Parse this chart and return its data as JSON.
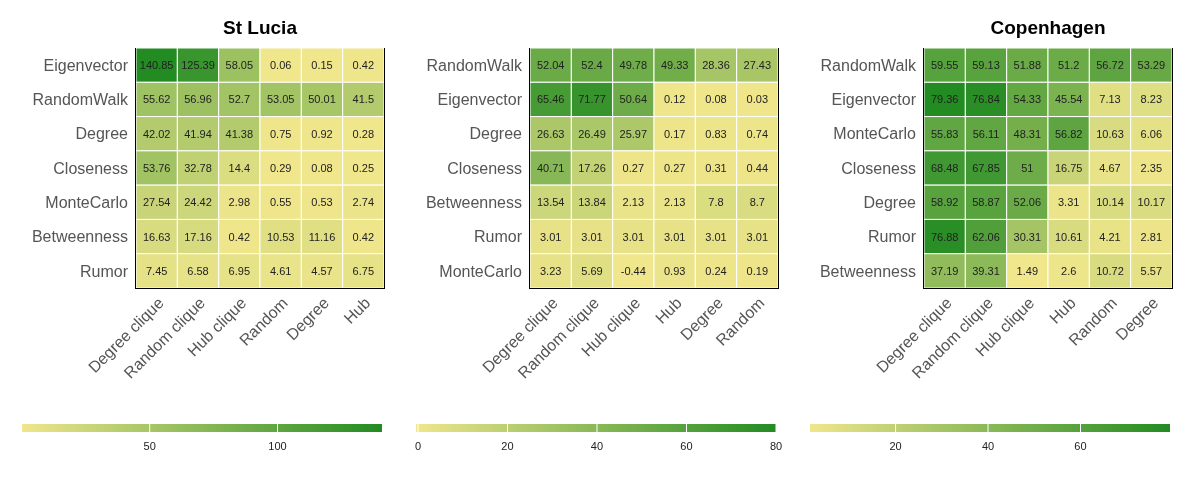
{
  "chart_data": [
    {
      "type": "heatmap",
      "title": "St Lucia",
      "categories": [
        "Degree clique",
        "Random clique",
        "Hub clique",
        "Random",
        "Degree",
        "Hub"
      ],
      "y_categories": [
        "Eigenvector",
        "RandomWalk",
        "Degree",
        "Closeness",
        "MonteCarlo",
        "Betweenness",
        "Rumor"
      ],
      "cells": [
        [
          140.85,
          125.39,
          58.05,
          0.06,
          0.15,
          0.42
        ],
        [
          55.62,
          56.96,
          52.7,
          53.05,
          50.01,
          41.5
        ],
        [
          42.02,
          41.94,
          41.38,
          0.75,
          0.92,
          0.28
        ],
        [
          53.76,
          32.78,
          14.4,
          0.29,
          0.08,
          0.25
        ],
        [
          27.54,
          24.42,
          2.98,
          0.55,
          0.53,
          2.74
        ],
        [
          16.63,
          17.16,
          0.42,
          10.53,
          11.16,
          0.42
        ],
        [
          7.45,
          6.58,
          6.95,
          4.61,
          4.57,
          6.75
        ]
      ],
      "clim": [
        0.06,
        140.85
      ],
      "cticks": [
        50,
        100
      ],
      "data_labels": true
    },
    {
      "type": "heatmap",
      "categories": [
        "Degree clique",
        "Random clique",
        "Hub clique",
        "Hub",
        "Degree",
        "Random"
      ],
      "y_categories": [
        "RandomWalk",
        "Eigenvector",
        "Degree",
        "Closeness",
        "Betweenness",
        "Rumor",
        "MonteCarlo"
      ],
      "cells": [
        [
          52.04,
          52.4,
          49.78,
          49.33,
          28.36,
          27.43
        ],
        [
          65.46,
          71.77,
          50.64,
          0.12,
          0.08,
          0.03
        ],
        [
          26.63,
          26.49,
          25.97,
          0.17,
          0.83,
          0.74
        ],
        [
          40.71,
          17.26,
          0.27,
          0.27,
          0.31,
          0.44
        ],
        [
          13.54,
          13.84,
          2.13,
          2.13,
          7.8,
          8.7
        ],
        [
          3.01,
          3.01,
          3.01,
          3.01,
          3.01,
          3.01
        ],
        [
          3.23,
          5.69,
          -0.44,
          0.93,
          0.24,
          0.19
        ]
      ],
      "clim": [
        -0.44,
        80
      ],
      "cticks": [
        0,
        20,
        40,
        60,
        80
      ],
      "data_labels": true
    },
    {
      "type": "heatmap",
      "title": "Copenhagen",
      "categories": [
        "Degree clique",
        "Random clique",
        "Hub clique",
        "Hub",
        "Random",
        "Degree"
      ],
      "y_categories": [
        "RandomWalk",
        "Eigenvector",
        "MonteCarlo",
        "Closeness",
        "Degree",
        "Rumor",
        "Betweenness"
      ],
      "cells": [
        [
          59.55,
          59.13,
          51.88,
          51.2,
          56.72,
          53.29
        ],
        [
          79.36,
          76.84,
          54.33,
          45.54,
          7.13,
          8.23
        ],
        [
          55.83,
          56.11,
          48.31,
          56.82,
          10.63,
          6.06
        ],
        [
          68.48,
          67.85,
          51,
          16.75,
          4.67,
          2.35
        ],
        [
          58.92,
          58.87,
          52.06,
          3.31,
          10.14,
          10.17
        ],
        [
          76.88,
          62.06,
          30.31,
          10.61,
          4.21,
          2.81
        ],
        [
          37.19,
          39.31,
          1.49,
          2.6,
          10.72,
          5.57
        ]
      ],
      "clim": [
        1.49,
        79.36
      ],
      "cticks": [
        20,
        40,
        60
      ],
      "data_labels": true
    }
  ]
}
